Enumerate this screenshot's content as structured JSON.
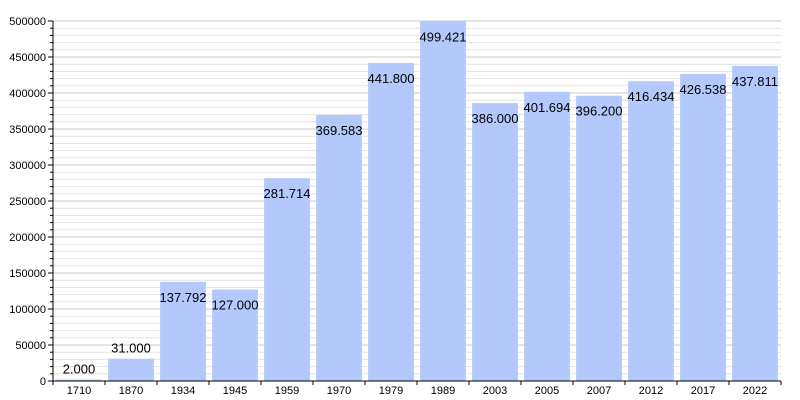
{
  "chart_data": {
    "type": "bar",
    "title": "",
    "xlabel": "",
    "ylabel": "",
    "categories": [
      "1710",
      "1870",
      "1934",
      "1945",
      "1959",
      "1970",
      "1979",
      "1989",
      "2003",
      "2005",
      "2007",
      "2012",
      "2017",
      "2022"
    ],
    "values": [
      2000,
      31000,
      137792,
      127000,
      281714,
      369583,
      441800,
      499421,
      386000,
      401694,
      396200,
      416434,
      426538,
      437811
    ],
    "value_labels": [
      "2.000",
      "31.000",
      "137.792",
      "127.000",
      "281.714",
      "369.583",
      "441.800",
      "499.421",
      "386.000",
      "401.694",
      "396.200",
      "416.434",
      "426.538",
      "437.811"
    ],
    "ylim": [
      0,
      500000
    ],
    "y_ticks": [
      "0",
      "50000",
      "100000",
      "150000",
      "200000",
      "250000",
      "300000",
      "350000",
      "400000",
      "450000",
      "500000"
    ],
    "grid": true,
    "bar_color": "#b3c9fc",
    "grid_color": "#c8c8c8"
  }
}
